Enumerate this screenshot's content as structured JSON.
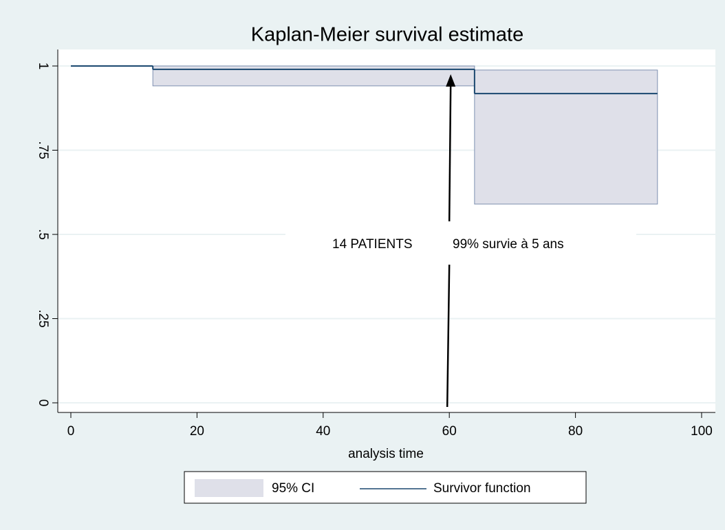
{
  "chart_data": {
    "type": "step",
    "title": "Kaplan-Meier survival estimate",
    "x_label": "analysis time",
    "x": [
      0,
      13,
      64,
      93
    ],
    "series": [
      {
        "name": "Survivor function",
        "color": "#1a476f",
        "values": [
          1,
          0.99,
          0.918,
          0.918
        ]
      }
    ],
    "ci": {
      "name": "95% CI",
      "color": "#dfe0e9",
      "lower": [
        1,
        0.941,
        0.59,
        0.59
      ],
      "upper": [
        1,
        1,
        0.988,
        0.988
      ]
    },
    "xlim": [
      0,
      100
    ],
    "xticks": [
      0,
      20,
      40,
      60,
      80,
      100
    ],
    "ylim": [
      0,
      1
    ],
    "yticks": [
      0,
      {
        "value": 0.25,
        "label": ".25"
      },
      {
        "value": 0.5,
        "label": ".5"
      },
      {
        "value": 0.75,
        "label": ".75"
      },
      1
    ],
    "grid": true,
    "annotation": {
      "x": 60,
      "texts": [
        "14 PATIENTS",
        "99% survie à 5 ans"
      ]
    }
  }
}
